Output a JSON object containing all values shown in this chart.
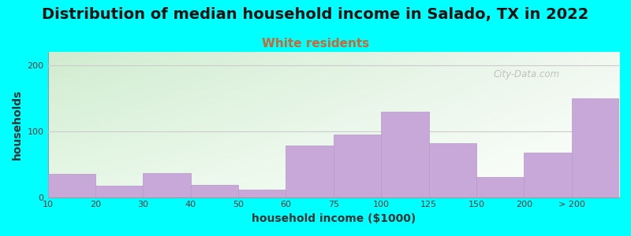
{
  "title": "Distribution of median household income in Salado, TX in 2022",
  "subtitle": "White residents",
  "xlabel": "household income ($1000)",
  "ylabel": "households",
  "background_color": "#00FFFF",
  "bar_color": "#c8a8d8",
  "bar_edge_color": "#b898c8",
  "categories": [
    "10",
    "20",
    "30",
    "40",
    "50",
    "60",
    "75",
    "100",
    "125",
    "150",
    "200",
    "> 200"
  ],
  "values": [
    35,
    17,
    36,
    18,
    12,
    78,
    95,
    130,
    82,
    30,
    68,
    150
  ],
  "ylim": [
    0,
    220
  ],
  "yticks": [
    0,
    100,
    200
  ],
  "title_fontsize": 14,
  "subtitle_fontsize": 11,
  "subtitle_color": "#cc6633",
  "title_color": "#111111",
  "watermark_text": "City-Data.com",
  "axis_label_fontsize": 10,
  "tick_fontsize": 8,
  "grid_color": "#cccccc",
  "gradient_topleft": "#d0ecd0",
  "gradient_topright": "#f0f8f0",
  "gradient_botleft": "#e8f8e8",
  "gradient_botright": "#ffffff"
}
